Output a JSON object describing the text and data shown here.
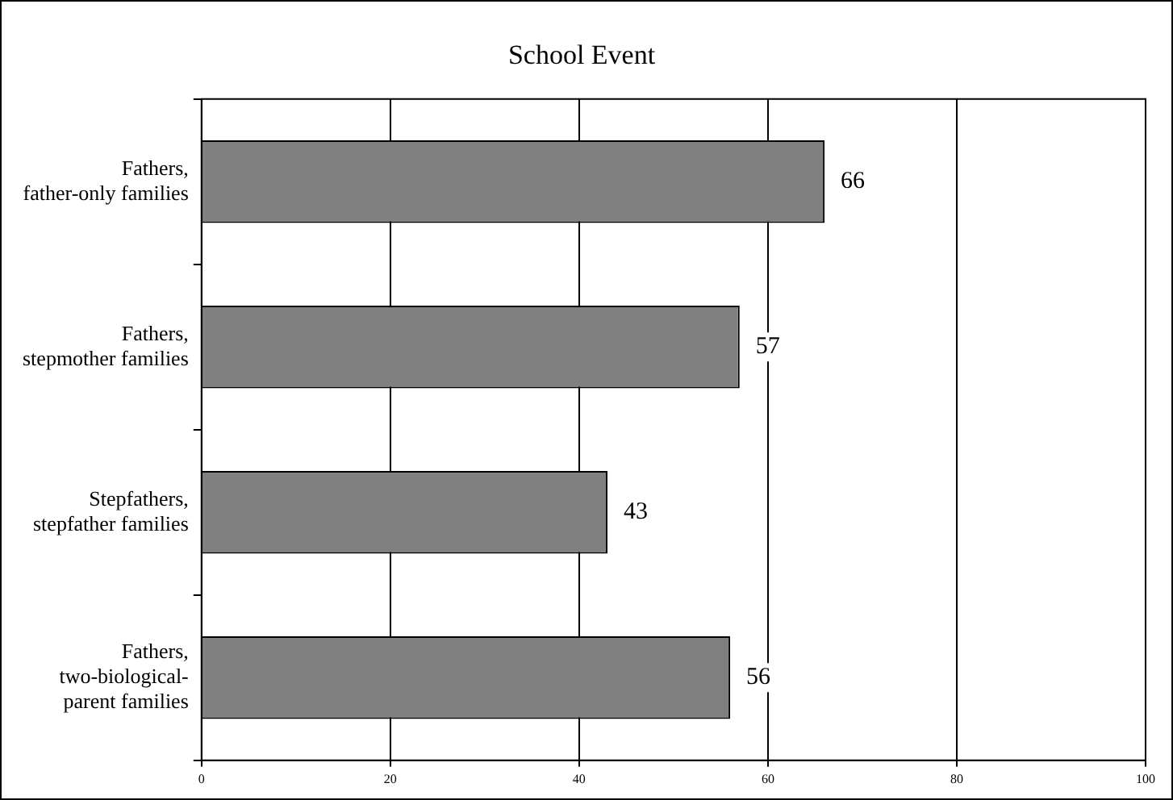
{
  "chart_data": {
    "type": "bar",
    "orientation": "horizontal",
    "title": "School Event",
    "categories": [
      "Fathers,\nfather-only families",
      "Fathers,\nstepmother families",
      "Stepfathers,\nstepfather families",
      "Fathers,\ntwo-biological-\nparent families"
    ],
    "values": [
      66,
      57,
      43,
      56
    ],
    "color": "#808080",
    "xlim": [
      0,
      100
    ],
    "xticks": [
      0,
      20,
      40,
      60,
      80,
      100
    ],
    "grid": "x",
    "data_labels": true,
    "legend": false
  }
}
